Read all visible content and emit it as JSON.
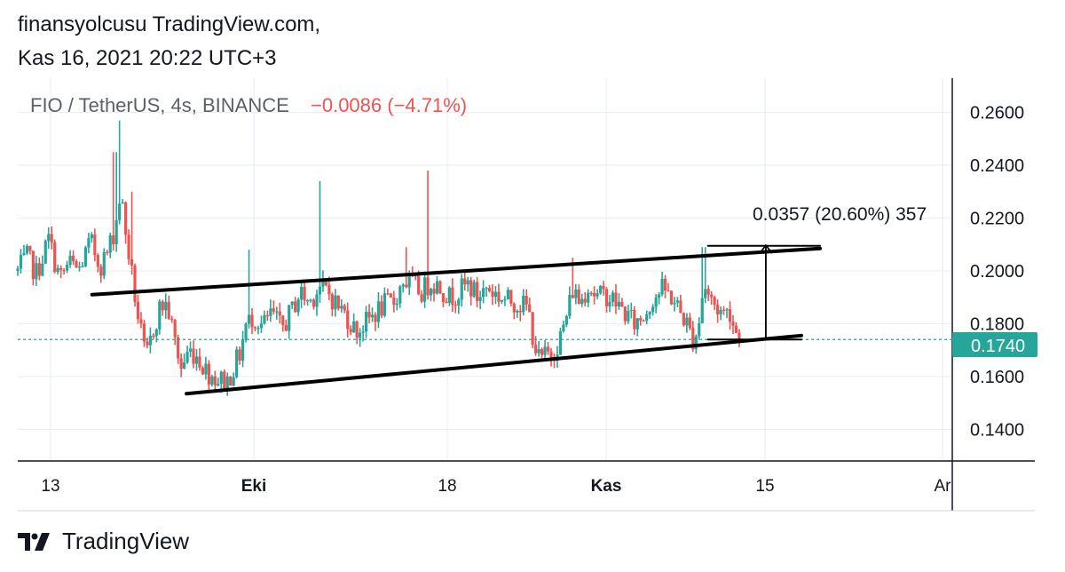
{
  "header": {
    "line1": "finansyolcusu TradingView.com,",
    "line2": "Kas 16, 2021 20:22 UTC+3"
  },
  "legend": {
    "symbol": "FIO / TetherUS, 4s, BINANCE",
    "change": "−0.0086 (−4.71%)"
  },
  "measure": {
    "label": "0.0357 (20.60%) 357"
  },
  "price_tag": "0.1740",
  "footer": {
    "brand": "TradingView"
  },
  "colors": {
    "up": "#26a69a",
    "down": "#ef5350",
    "change_text": "#ef5350",
    "grid": "#e6eef5",
    "price_line": "#26a69a"
  },
  "chart_data": {
    "type": "candlestick",
    "y_ticks": [
      "0.2600",
      "0.2400",
      "0.2200",
      "0.2000",
      "0.1800",
      "0.1600",
      "0.1400"
    ],
    "ylim": [
      0.128,
      0.273
    ],
    "x_ticks": [
      {
        "label": "13",
        "bold": false
      },
      {
        "label": "Eki",
        "bold": true
      },
      {
        "label": "18",
        "bold": false
      },
      {
        "label": "Kas",
        "bold": true
      },
      {
        "label": "15",
        "bold": false
      },
      {
        "label": "Ar",
        "bold": false
      }
    ],
    "last_price": 0.174,
    "trendlines": [
      {
        "start": [
          0.0795,
          0.191
        ],
        "end": [
          0.8585,
          0.2085
        ]
      },
      {
        "start": [
          0.1805,
          0.1535
        ],
        "end": [
          0.8385,
          0.1755
        ]
      },
      {
        "start": [
          0.7385,
          0.2095
        ],
        "end": [
          0.8585,
          0.2095
        ]
      },
      {
        "start": [
          0.7385,
          0.174
        ],
        "end": [
          0.8385,
          0.174
        ]
      }
    ],
    "measure_arrow": {
      "x": 0.8005,
      "from": 0.174,
      "to": 0.2097
    },
    "anchors": [
      [
        0.0,
        0.2
      ],
      [
        0.01,
        0.205
      ],
      [
        0.02,
        0.199
      ],
      [
        0.033,
        0.212
      ],
      [
        0.045,
        0.197
      ],
      [
        0.055,
        0.203
      ],
      [
        0.065,
        0.2
      ],
      [
        0.078,
        0.211
      ],
      [
        0.088,
        0.202
      ],
      [
        0.096,
        0.207
      ],
      [
        0.104,
        0.216
      ],
      [
        0.11,
        0.23
      ],
      [
        0.114,
        0.218
      ],
      [
        0.121,
        0.201
      ],
      [
        0.128,
        0.184
      ],
      [
        0.137,
        0.166
      ],
      [
        0.145,
        0.178
      ],
      [
        0.153,
        0.187
      ],
      [
        0.16,
        0.187
      ],
      [
        0.167,
        0.175
      ],
      [
        0.175,
        0.163
      ],
      [
        0.183,
        0.17
      ],
      [
        0.192,
        0.168
      ],
      [
        0.202,
        0.162
      ],
      [
        0.214,
        0.159
      ],
      [
        0.224,
        0.158
      ],
      [
        0.232,
        0.164
      ],
      [
        0.238,
        0.169
      ],
      [
        0.244,
        0.179
      ],
      [
        0.252,
        0.183
      ],
      [
        0.262,
        0.179
      ],
      [
        0.272,
        0.184
      ],
      [
        0.282,
        0.178
      ],
      [
        0.292,
        0.184
      ],
      [
        0.302,
        0.192
      ],
      [
        0.312,
        0.188
      ],
      [
        0.322,
        0.194
      ],
      [
        0.332,
        0.192
      ],
      [
        0.342,
        0.187
      ],
      [
        0.352,
        0.183
      ],
      [
        0.362,
        0.177
      ],
      [
        0.372,
        0.18
      ],
      [
        0.382,
        0.184
      ],
      [
        0.392,
        0.187
      ],
      [
        0.402,
        0.188
      ],
      [
        0.412,
        0.196
      ],
      [
        0.422,
        0.195
      ],
      [
        0.432,
        0.192
      ],
      [
        0.442,
        0.196
      ],
      [
        0.452,
        0.194
      ],
      [
        0.462,
        0.19
      ],
      [
        0.472,
        0.192
      ],
      [
        0.482,
        0.195
      ],
      [
        0.492,
        0.19
      ],
      [
        0.502,
        0.194
      ],
      [
        0.512,
        0.191
      ],
      [
        0.522,
        0.189
      ],
      [
        0.534,
        0.188
      ],
      [
        0.546,
        0.186
      ],
      [
        0.552,
        0.174
      ],
      [
        0.558,
        0.166
      ],
      [
        0.566,
        0.168
      ],
      [
        0.574,
        0.17
      ],
      [
        0.582,
        0.176
      ],
      [
        0.588,
        0.184
      ],
      [
        0.594,
        0.193
      ],
      [
        0.602,
        0.188
      ],
      [
        0.61,
        0.195
      ],
      [
        0.62,
        0.19
      ],
      [
        0.63,
        0.191
      ],
      [
        0.64,
        0.188
      ],
      [
        0.65,
        0.184
      ],
      [
        0.66,
        0.18
      ],
      [
        0.67,
        0.183
      ],
      [
        0.68,
        0.19
      ],
      [
        0.69,
        0.193
      ],
      [
        0.7,
        0.19
      ],
      [
        0.708,
        0.185
      ],
      [
        0.716,
        0.18
      ],
      [
        0.722,
        0.174
      ],
      [
        0.728,
        0.178
      ],
      [
        0.734,
        0.195
      ],
      [
        0.74,
        0.19
      ],
      [
        0.748,
        0.186
      ],
      [
        0.756,
        0.184
      ],
      [
        0.762,
        0.185
      ],
      [
        0.767,
        0.178
      ],
      [
        0.772,
        0.174
      ]
    ],
    "spikes": [
      {
        "x": 0.104,
        "high": 0.245
      },
      {
        "x": 0.11,
        "high": 0.257
      },
      {
        "x": 0.121,
        "high": 0.23
      },
      {
        "x": 0.248,
        "high": 0.208
      },
      {
        "x": 0.323,
        "high": 0.234
      },
      {
        "x": 0.415,
        "high": 0.209
      },
      {
        "x": 0.44,
        "high": 0.238
      },
      {
        "x": 0.594,
        "high": 0.205
      },
      {
        "x": 0.734,
        "high": 0.209
      }
    ]
  }
}
